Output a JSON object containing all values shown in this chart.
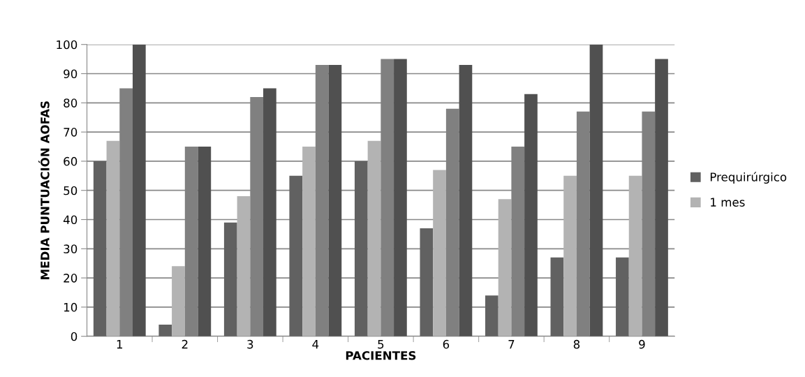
{
  "chart_data": {
    "type": "bar",
    "xlabel": "PACIENTES",
    "ylabel": "MEDIA PUNTUACIÓN AOFAS",
    "categories": [
      "1",
      "2",
      "3",
      "4",
      "5",
      "6",
      "7",
      "8",
      "9"
    ],
    "series": [
      {
        "name": "Prequirúrgico",
        "color": "#616161",
        "values": [
          60,
          4,
          39,
          55,
          60,
          37,
          14,
          27,
          27
        ]
      },
      {
        "name": "1 mes",
        "color": "#b3b3b3",
        "values": [
          67,
          24,
          48,
          65,
          67,
          57,
          47,
          55,
          55
        ]
      },
      {
        "color": "#808080",
        "values": [
          85,
          65,
          82,
          93,
          95,
          78,
          65,
          77,
          77
        ]
      },
      {
        "color": "#505050",
        "values": [
          100,
          65,
          85,
          93,
          95,
          93,
          83,
          100,
          95
        ]
      }
    ],
    "ylim": [
      0,
      100
    ],
    "yticks": [
      0,
      10,
      20,
      30,
      40,
      50,
      60,
      70,
      80,
      90,
      100
    ],
    "grid": "y",
    "legend": "right"
  }
}
